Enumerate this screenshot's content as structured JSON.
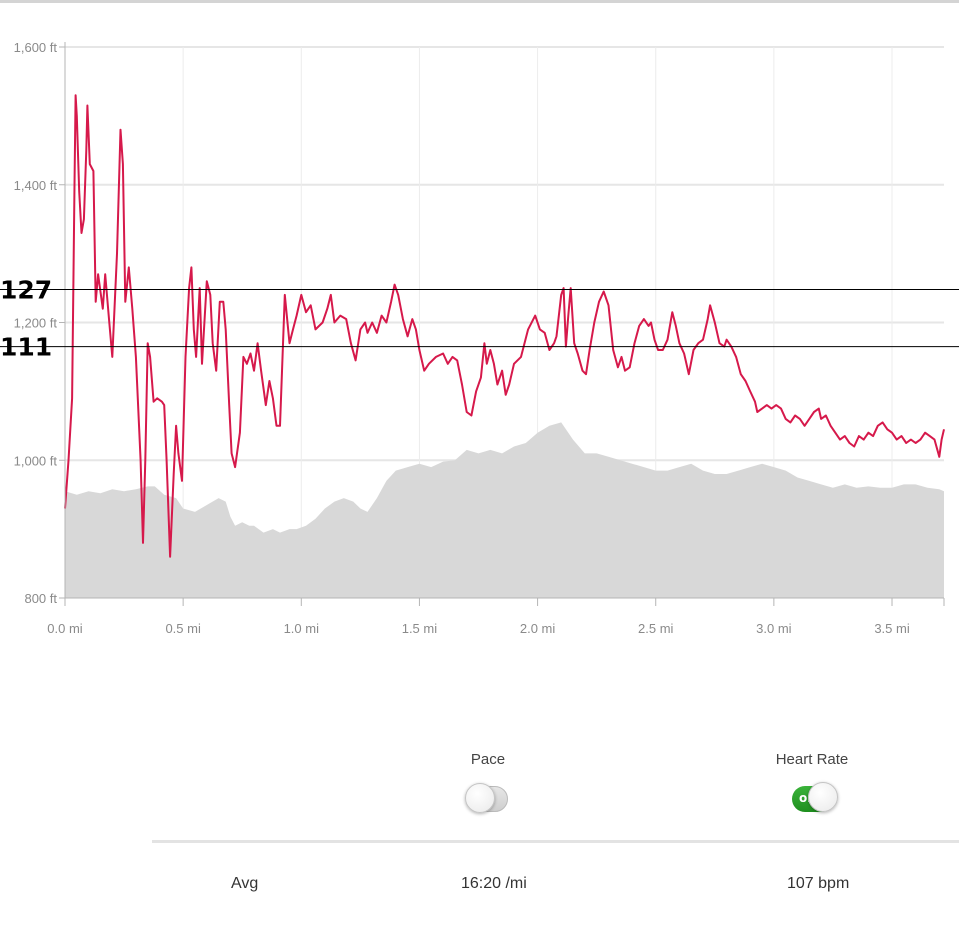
{
  "chart_data": {
    "type": "line",
    "y_unit": "ft",
    "x_unit": "mi",
    "y_ticks": [
      "1,600 ft",
      "1,400 ft",
      "1,200 ft",
      "1,000 ft",
      "800 ft"
    ],
    "y_tick_values": [
      1600,
      1400,
      1200,
      1000,
      800
    ],
    "x_ticks": [
      "0.0 mi",
      "0.5 mi",
      "1.0 mi",
      "1.5 mi",
      "2.0 mi",
      "2.5 mi",
      "3.0 mi",
      "3.5 mi"
    ],
    "x_tick_values": [
      0,
      0.5,
      1.0,
      1.5,
      2.0,
      2.5,
      3.0,
      3.5
    ],
    "ylim": [
      800,
      1600
    ],
    "xlim": [
      0,
      3.72
    ],
    "grid": true,
    "reference_lines": [
      {
        "label": "127",
        "value": 1248
      },
      {
        "label": "111",
        "value": 1165
      }
    ],
    "series": [
      {
        "color": "#d6194b",
        "points": [
          [
            0.0,
            930
          ],
          [
            0.015,
            1000
          ],
          [
            0.03,
            1090
          ],
          [
            0.04,
            1400
          ],
          [
            0.045,
            1530
          ],
          [
            0.05,
            1500
          ],
          [
            0.06,
            1390
          ],
          [
            0.07,
            1330
          ],
          [
            0.08,
            1350
          ],
          [
            0.09,
            1450
          ],
          [
            0.095,
            1515
          ],
          [
            0.105,
            1430
          ],
          [
            0.12,
            1420
          ],
          [
            0.13,
            1230
          ],
          [
            0.14,
            1270
          ],
          [
            0.16,
            1220
          ],
          [
            0.17,
            1270
          ],
          [
            0.185,
            1210
          ],
          [
            0.2,
            1150
          ],
          [
            0.22,
            1300
          ],
          [
            0.235,
            1480
          ],
          [
            0.245,
            1430
          ],
          [
            0.255,
            1230
          ],
          [
            0.27,
            1280
          ],
          [
            0.285,
            1220
          ],
          [
            0.3,
            1150
          ],
          [
            0.32,
            1000
          ],
          [
            0.33,
            880
          ],
          [
            0.34,
            1000
          ],
          [
            0.35,
            1170
          ],
          [
            0.36,
            1150
          ],
          [
            0.375,
            1085
          ],
          [
            0.39,
            1090
          ],
          [
            0.41,
            1085
          ],
          [
            0.42,
            1080
          ],
          [
            0.43,
            1000
          ],
          [
            0.445,
            860
          ],
          [
            0.46,
            980
          ],
          [
            0.47,
            1050
          ],
          [
            0.48,
            1010
          ],
          [
            0.495,
            970
          ],
          [
            0.51,
            1150
          ],
          [
            0.525,
            1250
          ],
          [
            0.535,
            1280
          ],
          [
            0.545,
            1190
          ],
          [
            0.555,
            1150
          ],
          [
            0.57,
            1250
          ],
          [
            0.58,
            1140
          ],
          [
            0.6,
            1260
          ],
          [
            0.615,
            1240
          ],
          [
            0.625,
            1170
          ],
          [
            0.64,
            1130
          ],
          [
            0.655,
            1230
          ],
          [
            0.67,
            1230
          ],
          [
            0.68,
            1190
          ],
          [
            0.695,
            1080
          ],
          [
            0.705,
            1010
          ],
          [
            0.72,
            990
          ],
          [
            0.74,
            1040
          ],
          [
            0.755,
            1150
          ],
          [
            0.77,
            1140
          ],
          [
            0.785,
            1155
          ],
          [
            0.8,
            1130
          ],
          [
            0.815,
            1170
          ],
          [
            0.83,
            1130
          ],
          [
            0.85,
            1080
          ],
          [
            0.865,
            1115
          ],
          [
            0.88,
            1090
          ],
          [
            0.895,
            1050
          ],
          [
            0.91,
            1050
          ],
          [
            0.93,
            1240
          ],
          [
            0.95,
            1170
          ],
          [
            0.965,
            1190
          ],
          [
            0.98,
            1210
          ],
          [
            1.0,
            1240
          ],
          [
            1.02,
            1215
          ],
          [
            1.04,
            1225
          ],
          [
            1.06,
            1190
          ],
          [
            1.09,
            1200
          ],
          [
            1.11,
            1220
          ],
          [
            1.125,
            1240
          ],
          [
            1.14,
            1200
          ],
          [
            1.165,
            1210
          ],
          [
            1.19,
            1205
          ],
          [
            1.21,
            1170
          ],
          [
            1.23,
            1145
          ],
          [
            1.25,
            1190
          ],
          [
            1.27,
            1200
          ],
          [
            1.28,
            1185
          ],
          [
            1.3,
            1200
          ],
          [
            1.32,
            1185
          ],
          [
            1.34,
            1210
          ],
          [
            1.36,
            1200
          ],
          [
            1.38,
            1230
          ],
          [
            1.395,
            1255
          ],
          [
            1.41,
            1240
          ],
          [
            1.43,
            1205
          ],
          [
            1.45,
            1180
          ],
          [
            1.47,
            1205
          ],
          [
            1.485,
            1190
          ],
          [
            1.5,
            1160
          ],
          [
            1.52,
            1130
          ],
          [
            1.54,
            1140
          ],
          [
            1.57,
            1150
          ],
          [
            1.6,
            1155
          ],
          [
            1.62,
            1140
          ],
          [
            1.64,
            1150
          ],
          [
            1.66,
            1145
          ],
          [
            1.68,
            1110
          ],
          [
            1.7,
            1070
          ],
          [
            1.72,
            1065
          ],
          [
            1.74,
            1100
          ],
          [
            1.76,
            1120
          ],
          [
            1.775,
            1170
          ],
          [
            1.785,
            1140
          ],
          [
            1.8,
            1160
          ],
          [
            1.815,
            1140
          ],
          [
            1.83,
            1110
          ],
          [
            1.85,
            1130
          ],
          [
            1.865,
            1095
          ],
          [
            1.88,
            1110
          ],
          [
            1.9,
            1140
          ],
          [
            1.93,
            1150
          ],
          [
            1.96,
            1190
          ],
          [
            1.99,
            1210
          ],
          [
            2.01,
            1190
          ],
          [
            2.03,
            1185
          ],
          [
            2.05,
            1160
          ],
          [
            2.07,
            1170
          ],
          [
            2.08,
            1180
          ],
          [
            2.1,
            1240
          ],
          [
            2.11,
            1250
          ],
          [
            2.12,
            1165
          ],
          [
            2.13,
            1210
          ],
          [
            2.14,
            1250
          ],
          [
            2.155,
            1170
          ],
          [
            2.17,
            1155
          ],
          [
            2.19,
            1130
          ],
          [
            2.205,
            1125
          ],
          [
            2.22,
            1160
          ],
          [
            2.24,
            1200
          ],
          [
            2.26,
            1230
          ],
          [
            2.28,
            1245
          ],
          [
            2.3,
            1225
          ],
          [
            2.32,
            1160
          ],
          [
            2.34,
            1135
          ],
          [
            2.355,
            1150
          ],
          [
            2.37,
            1130
          ],
          [
            2.39,
            1135
          ],
          [
            2.41,
            1170
          ],
          [
            2.43,
            1195
          ],
          [
            2.45,
            1205
          ],
          [
            2.47,
            1195
          ],
          [
            2.48,
            1200
          ],
          [
            2.495,
            1175
          ],
          [
            2.51,
            1160
          ],
          [
            2.53,
            1160
          ],
          [
            2.55,
            1175
          ],
          [
            2.57,
            1215
          ],
          [
            2.585,
            1195
          ],
          [
            2.6,
            1170
          ],
          [
            2.62,
            1155
          ],
          [
            2.64,
            1125
          ],
          [
            2.66,
            1160
          ],
          [
            2.68,
            1170
          ],
          [
            2.7,
            1175
          ],
          [
            2.72,
            1205
          ],
          [
            2.73,
            1225
          ],
          [
            2.75,
            1200
          ],
          [
            2.77,
            1170
          ],
          [
            2.79,
            1165
          ],
          [
            2.8,
            1175
          ],
          [
            2.82,
            1165
          ],
          [
            2.84,
            1150
          ],
          [
            2.86,
            1125
          ],
          [
            2.88,
            1115
          ],
          [
            2.9,
            1100
          ],
          [
            2.92,
            1085
          ],
          [
            2.93,
            1070
          ],
          [
            2.95,
            1075
          ],
          [
            2.97,
            1080
          ],
          [
            2.99,
            1075
          ],
          [
            3.01,
            1080
          ],
          [
            3.03,
            1075
          ],
          [
            3.05,
            1060
          ],
          [
            3.07,
            1055
          ],
          [
            3.09,
            1065
          ],
          [
            3.11,
            1060
          ],
          [
            3.13,
            1050
          ],
          [
            3.15,
            1060
          ],
          [
            3.17,
            1070
          ],
          [
            3.19,
            1075
          ],
          [
            3.2,
            1060
          ],
          [
            3.22,
            1065
          ],
          [
            3.24,
            1050
          ],
          [
            3.26,
            1040
          ],
          [
            3.28,
            1030
          ],
          [
            3.3,
            1035
          ],
          [
            3.32,
            1025
          ],
          [
            3.34,
            1020
          ],
          [
            3.36,
            1035
          ],
          [
            3.38,
            1030
          ],
          [
            3.4,
            1040
          ],
          [
            3.42,
            1035
          ],
          [
            3.44,
            1050
          ],
          [
            3.46,
            1055
          ],
          [
            3.48,
            1045
          ],
          [
            3.5,
            1040
          ],
          [
            3.52,
            1030
          ],
          [
            3.54,
            1035
          ],
          [
            3.56,
            1025
          ],
          [
            3.58,
            1030
          ],
          [
            3.6,
            1025
          ],
          [
            3.62,
            1030
          ],
          [
            3.64,
            1040
          ],
          [
            3.66,
            1035
          ],
          [
            3.68,
            1030
          ],
          [
            3.7,
            1005
          ],
          [
            3.71,
            1030
          ],
          [
            3.72,
            1045
          ]
        ]
      },
      {
        "type": "area",
        "color": "#d8d8d8",
        "points": [
          [
            0.0,
            955
          ],
          [
            0.05,
            950
          ],
          [
            0.1,
            955
          ],
          [
            0.15,
            952
          ],
          [
            0.2,
            958
          ],
          [
            0.25,
            955
          ],
          [
            0.3,
            958
          ],
          [
            0.35,
            962
          ],
          [
            0.38,
            962
          ],
          [
            0.42,
            950
          ],
          [
            0.47,
            945
          ],
          [
            0.5,
            930
          ],
          [
            0.55,
            925
          ],
          [
            0.6,
            935
          ],
          [
            0.65,
            945
          ],
          [
            0.68,
            940
          ],
          [
            0.7,
            918
          ],
          [
            0.72,
            905
          ],
          [
            0.75,
            910
          ],
          [
            0.78,
            905
          ],
          [
            0.8,
            905
          ],
          [
            0.84,
            895
          ],
          [
            0.88,
            900
          ],
          [
            0.91,
            895
          ],
          [
            0.95,
            900
          ],
          [
            0.98,
            900
          ],
          [
            1.02,
            905
          ],
          [
            1.06,
            915
          ],
          [
            1.1,
            930
          ],
          [
            1.14,
            940
          ],
          [
            1.18,
            945
          ],
          [
            1.22,
            940
          ],
          [
            1.25,
            930
          ],
          [
            1.28,
            925
          ],
          [
            1.32,
            945
          ],
          [
            1.36,
            970
          ],
          [
            1.4,
            985
          ],
          [
            1.45,
            990
          ],
          [
            1.5,
            995
          ],
          [
            1.55,
            990
          ],
          [
            1.6,
            998
          ],
          [
            1.65,
            1000
          ],
          [
            1.7,
            1015
          ],
          [
            1.75,
            1010
          ],
          [
            1.8,
            1015
          ],
          [
            1.85,
            1010
          ],
          [
            1.9,
            1020
          ],
          [
            1.95,
            1025
          ],
          [
            2.0,
            1040
          ],
          [
            2.05,
            1050
          ],
          [
            2.1,
            1055
          ],
          [
            2.12,
            1045
          ],
          [
            2.15,
            1030
          ],
          [
            2.2,
            1010
          ],
          [
            2.25,
            1010
          ],
          [
            2.3,
            1005
          ],
          [
            2.35,
            1000
          ],
          [
            2.4,
            995
          ],
          [
            2.45,
            990
          ],
          [
            2.5,
            985
          ],
          [
            2.55,
            985
          ],
          [
            2.6,
            990
          ],
          [
            2.65,
            995
          ],
          [
            2.7,
            985
          ],
          [
            2.75,
            980
          ],
          [
            2.8,
            980
          ],
          [
            2.85,
            985
          ],
          [
            2.9,
            990
          ],
          [
            2.95,
            995
          ],
          [
            3.0,
            990
          ],
          [
            3.05,
            985
          ],
          [
            3.1,
            975
          ],
          [
            3.15,
            970
          ],
          [
            3.2,
            965
          ],
          [
            3.25,
            960
          ],
          [
            3.3,
            965
          ],
          [
            3.35,
            960
          ],
          [
            3.4,
            962
          ],
          [
            3.45,
            960
          ],
          [
            3.5,
            960
          ],
          [
            3.55,
            965
          ],
          [
            3.6,
            965
          ],
          [
            3.65,
            960
          ],
          [
            3.7,
            958
          ],
          [
            3.72,
            955
          ]
        ]
      }
    ]
  },
  "toggles": {
    "pace": {
      "label": "Pace",
      "state": "off"
    },
    "heart_rate": {
      "label": "Heart Rate",
      "state": "on",
      "on_text": "on"
    }
  },
  "stats": {
    "row_label": "Avg",
    "pace": "16:20 /mi",
    "heart_rate": "107 bpm"
  },
  "colors": {
    "line": "#d6194b",
    "area": "#d8d8d8",
    "grid": "#e6e6e6",
    "toggle_on": "#2aa22a"
  }
}
